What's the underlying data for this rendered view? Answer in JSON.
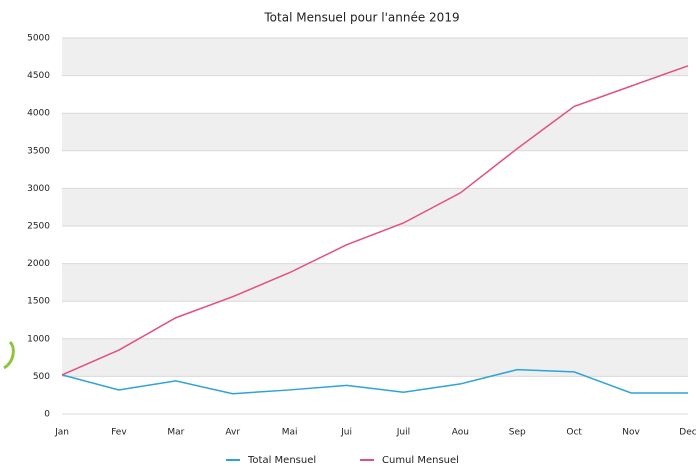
{
  "chart_data": {
    "type": "line",
    "title": "Total Mensuel pour l'année 2019",
    "categories": [
      "Jan",
      "Fev",
      "Mar",
      "Avr",
      "Mai",
      "Jui",
      "Juil",
      "Aou",
      "Sep",
      "Oct",
      "Nov",
      "Dec"
    ],
    "series": [
      {
        "name": "Total Mensuel",
        "color": "#2ea3d8",
        "values": [
          520,
          320,
          440,
          270,
          320,
          380,
          290,
          400,
          590,
          560,
          280,
          280
        ]
      },
      {
        "name": "Cumul Mensuel",
        "color": "#e3507f",
        "values": [
          520,
          850,
          1280,
          1560,
          1880,
          2250,
          2540,
          2940,
          3530,
          4090,
          4360,
          4630
        ]
      }
    ],
    "ylim": [
      0,
      5000
    ],
    "yticks": [
      0,
      500,
      1000,
      1500,
      2000,
      2500,
      3000,
      3500,
      4000,
      4500,
      5000
    ],
    "grid": true
  }
}
